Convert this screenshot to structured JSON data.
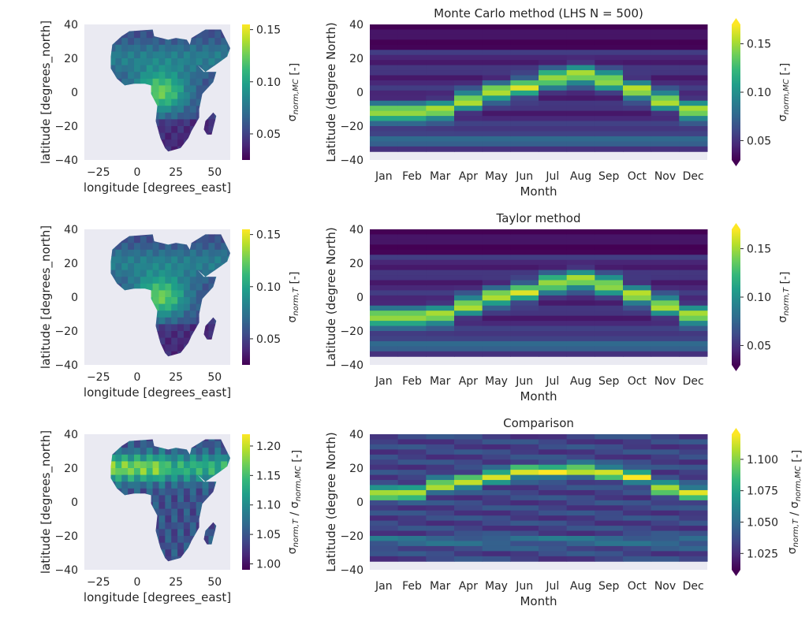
{
  "palette": {
    "viridis": [
      "#440154",
      "#482878",
      "#3e4a89",
      "#31688e",
      "#26828e",
      "#1f9e89",
      "#35b779",
      "#6ece58",
      "#b5de2b",
      "#fde725"
    ],
    "facecolor": "#eaeaf2",
    "land_base": "#3b528b"
  },
  "chart_data": [
    {
      "id": "map_mc",
      "type": "heatmap",
      "title": "",
      "xlabel": "longitude [degrees_east]",
      "ylabel": "latitude [degrees_north]",
      "xticks": [
        "−25",
        "0",
        "25",
        "50"
      ],
      "xtick_values": [
        -25,
        0,
        25,
        50
      ],
      "yticks": [
        "40",
        "20",
        "0",
        "−20",
        "−40"
      ],
      "ytick_values": [
        40,
        20,
        0,
        -20,
        -40
      ],
      "xlim": [
        -34,
        60
      ],
      "ylim": [
        -40,
        40
      ],
      "colorbar": {
        "label": "σnorm,MC [-]",
        "label_main": "σ",
        "label_sub": "norm,MC",
        "label_tail": " [-]",
        "ticks": [
          "0.15",
          "0.10",
          "0.05"
        ],
        "tick_values": [
          0.15,
          0.1,
          0.05
        ],
        "range": [
          0.025,
          0.155
        ]
      }
    },
    {
      "id": "lat_month_mc",
      "type": "heatmap",
      "title": "Monte Carlo method (LHS N = 500)",
      "xlabel": "Month",
      "ylabel": "Latitude (degree North)",
      "categories": [
        "Jan",
        "Feb",
        "Mar",
        "Apr",
        "May",
        "Jun",
        "Jul",
        "Aug",
        "Sep",
        "Oct",
        "Nov",
        "Dec"
      ],
      "yticks": [
        "40",
        "20",
        "0",
        "−20",
        "−40"
      ],
      "ytick_values": [
        40,
        20,
        0,
        -20,
        -40
      ],
      "ylim": [
        -40,
        40
      ],
      "peak_latitudes": [
        -12,
        -12,
        -11,
        -5,
        0,
        3,
        8,
        10,
        7,
        1,
        -5,
        -11
      ],
      "colorbar": {
        "label": "σnorm,MC [-]",
        "label_main": "σ",
        "label_sub": "norm,MC",
        "label_tail": " [-]",
        "ticks": [
          "0.15",
          "0.10",
          "0.05"
        ],
        "tick_values": [
          0.15,
          0.1,
          0.05
        ],
        "range": [
          0.03,
          0.17
        ],
        "extend": "both"
      }
    },
    {
      "id": "map_taylor",
      "type": "heatmap",
      "title": "",
      "xlabel": "longitude [degrees_east]",
      "ylabel": "latitude [degrees_north]",
      "xticks": [
        "−25",
        "0",
        "25",
        "50"
      ],
      "xtick_values": [
        -25,
        0,
        25,
        50
      ],
      "yticks": [
        "40",
        "20",
        "0",
        "−20",
        "−40"
      ],
      "ytick_values": [
        40,
        20,
        0,
        -20,
        -40
      ],
      "xlim": [
        -34,
        60
      ],
      "ylim": [
        -40,
        40
      ],
      "colorbar": {
        "label": "σnorm,T [-]",
        "label_main": "σ",
        "label_sub": "norm,T",
        "label_tail": " [-]",
        "ticks": [
          "0.15",
          "0.10",
          "0.05"
        ],
        "tick_values": [
          0.15,
          0.1,
          0.05
        ],
        "range": [
          0.025,
          0.155
        ]
      }
    },
    {
      "id": "lat_month_taylor",
      "type": "heatmap",
      "title": "Taylor method",
      "xlabel": "Month",
      "ylabel": "Latitude (degree North)",
      "categories": [
        "Jan",
        "Feb",
        "Mar",
        "Apr",
        "May",
        "Jun",
        "Jul",
        "Aug",
        "Sep",
        "Oct",
        "Nov",
        "Dec"
      ],
      "yticks": [
        "40",
        "20",
        "0",
        "−20",
        "−40"
      ],
      "ytick_values": [
        40,
        20,
        0,
        -20,
        -40
      ],
      "ylim": [
        -40,
        40
      ],
      "peak_latitudes": [
        -12,
        -12,
        -11,
        -5,
        0,
        3,
        8,
        10,
        7,
        1,
        -5,
        -11
      ],
      "colorbar": {
        "label": "σnorm,T [-]",
        "label_main": "σ",
        "label_sub": "norm,T",
        "label_tail": " [-]",
        "ticks": [
          "0.15",
          "0.10",
          "0.05"
        ],
        "tick_values": [
          0.15,
          0.1,
          0.05
        ],
        "range": [
          0.03,
          0.17
        ],
        "extend": "both"
      }
    },
    {
      "id": "map_ratio",
      "type": "heatmap",
      "title": "",
      "xlabel": "longitude [degrees_east]",
      "ylabel": "latitude [degrees_north]",
      "xticks": [
        "−25",
        "0",
        "25",
        "50"
      ],
      "xtick_values": [
        -25,
        0,
        25,
        50
      ],
      "yticks": [
        "40",
        "20",
        "0",
        "−20",
        "−40"
      ],
      "ytick_values": [
        40,
        20,
        0,
        -20,
        -40
      ],
      "xlim": [
        -34,
        60
      ],
      "ylim": [
        -40,
        40
      ],
      "colorbar": {
        "label": "σnorm,T / σnorm,MC [-]",
        "label_main": "σ",
        "label_sub": "norm,T",
        "label_mid": " / σ",
        "label_sub2": "norm,MC",
        "label_tail": " [-]",
        "ticks": [
          "1.20",
          "1.15",
          "1.10",
          "1.05",
          "1.00"
        ],
        "tick_values": [
          1.2,
          1.15,
          1.1,
          1.05,
          1.0
        ],
        "range": [
          0.99,
          1.22
        ]
      }
    },
    {
      "id": "lat_month_ratio",
      "type": "heatmap",
      "title": "Comparison",
      "xlabel": "Month",
      "ylabel": "Latitude (degree North)",
      "categories": [
        "Jan",
        "Feb",
        "Mar",
        "Apr",
        "May",
        "Jun",
        "Jul",
        "Aug",
        "Sep",
        "Oct",
        "Nov",
        "Dec"
      ],
      "yticks": [
        "40",
        "20",
        "0",
        "−20",
        "−40"
      ],
      "ytick_values": [
        40,
        20,
        0,
        -20,
        -40
      ],
      "ylim": [
        -40,
        40
      ],
      "peak_latitudes": [
        5,
        5,
        10,
        12,
        15,
        18,
        18,
        19,
        17,
        15,
        8,
        5
      ],
      "colorbar": {
        "label": "σnorm,T / σnorm,MC [-]",
        "label_main": "σ",
        "label_sub": "norm,T",
        "label_mid": " / σ",
        "label_sub2": "norm,MC",
        "label_tail": " [-]",
        "ticks": [
          "1.100",
          "1.075",
          "1.050",
          "1.025"
        ],
        "tick_values": [
          1.1,
          1.075,
          1.05,
          1.025
        ],
        "range": [
          1.012,
          1.12
        ],
        "extend": "both"
      }
    }
  ]
}
